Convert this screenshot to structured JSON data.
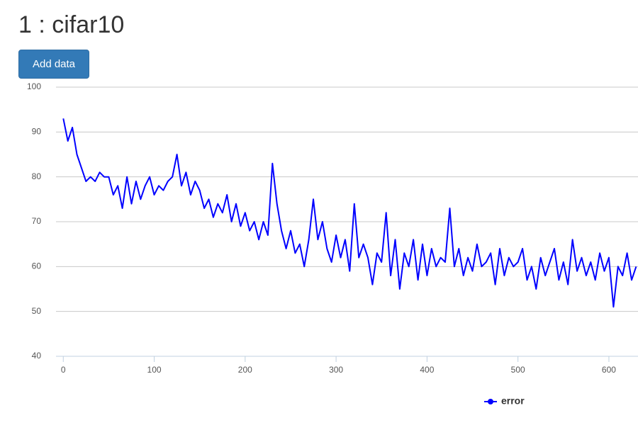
{
  "page": {
    "title": "1 : cifar10",
    "button": "Add data"
  },
  "chart_data": {
    "type": "line",
    "x": [
      0,
      5,
      10,
      15,
      20,
      25,
      30,
      35,
      40,
      45,
      50,
      55,
      60,
      65,
      70,
      75,
      80,
      85,
      90,
      95,
      100,
      105,
      110,
      115,
      120,
      125,
      130,
      135,
      140,
      145,
      150,
      155,
      160,
      165,
      170,
      175,
      180,
      185,
      190,
      195,
      200,
      205,
      210,
      215,
      220,
      225,
      230,
      235,
      240,
      245,
      250,
      255,
      260,
      265,
      270,
      275,
      280,
      285,
      290,
      295,
      300,
      305,
      310,
      315,
      320,
      325,
      330,
      335,
      340,
      345,
      350,
      355,
      360,
      365,
      370,
      375,
      380,
      385,
      390,
      395,
      400,
      405,
      410,
      415,
      420,
      425,
      430,
      435,
      440,
      445,
      450,
      455,
      460,
      465,
      470,
      475,
      480,
      485,
      490,
      495,
      500,
      505,
      510,
      515,
      520,
      525,
      530,
      535,
      540,
      545,
      550,
      555,
      560,
      565,
      570,
      575,
      580,
      585,
      590,
      595,
      600,
      605,
      610,
      615,
      620,
      625,
      630
    ],
    "series": [
      {
        "name": "error",
        "color": "#0000ff",
        "values": [
          93,
          88,
          91,
          85,
          82,
          79,
          80,
          79,
          81,
          80,
          80,
          76,
          78,
          73,
          80,
          74,
          79,
          75,
          78,
          80,
          76,
          78,
          77,
          79,
          80,
          85,
          78,
          81,
          76,
          79,
          77,
          73,
          75,
          71,
          74,
          72,
          76,
          70,
          74,
          69,
          72,
          68,
          70,
          66,
          70,
          67,
          83,
          74,
          68,
          64,
          68,
          63,
          65,
          60,
          66,
          75,
          66,
          70,
          64,
          61,
          67,
          62,
          66,
          59,
          74,
          62,
          65,
          62,
          56,
          63,
          61,
          72,
          58,
          66,
          55,
          63,
          60,
          66,
          57,
          65,
          58,
          64,
          60,
          62,
          61,
          73,
          60,
          64,
          58,
          62,
          59,
          65,
          60,
          61,
          63,
          56,
          64,
          58,
          62,
          60,
          61,
          64,
          57,
          60,
          55,
          62,
          58,
          61,
          64,
          57,
          61,
          56,
          66,
          59,
          62,
          58,
          61,
          57,
          63,
          59,
          62,
          51,
          60,
          58,
          63,
          57,
          60
        ]
      }
    ],
    "xlim": [
      -8,
      632
    ],
    "ylim": [
      40,
      100
    ],
    "xticks": [
      0,
      100,
      200,
      300,
      400,
      500,
      600
    ],
    "yticks": [
      40,
      50,
      60,
      70,
      80,
      90,
      100
    ],
    "grid": true,
    "legend": "bottom"
  }
}
